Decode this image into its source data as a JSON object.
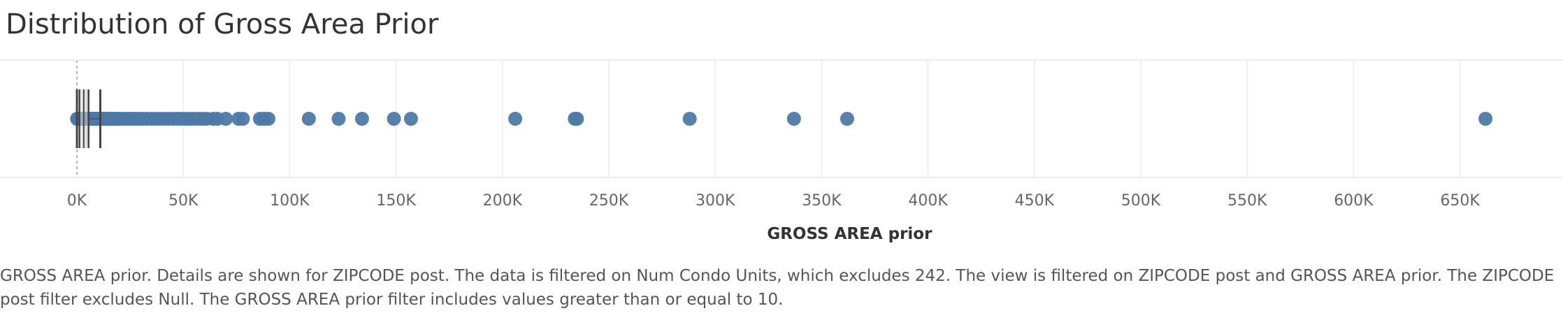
{
  "chart_data": {
    "type": "scatter",
    "title": "Distribution of Gross Area Prior",
    "xlabel": "GROSS AREA prior",
    "ylabel": "",
    "xlim": [
      0,
      700000
    ],
    "x_ticks": [
      0,
      50000,
      100000,
      150000,
      200000,
      250000,
      300000,
      350000,
      400000,
      450000,
      500000,
      550000,
      600000,
      650000
    ],
    "x_tick_labels": [
      "0K",
      "50K",
      "100K",
      "150K",
      "200K",
      "250K",
      "300K",
      "350K",
      "400K",
      "450K",
      "500K",
      "550K",
      "600K",
      "650K"
    ],
    "grid": "vertical",
    "mark_color": "#4e79a7",
    "reference_line_value": 0,
    "box_plot": {
      "lower_whisker": 10,
      "q1": 1200,
      "median": 3200,
      "q3": 5500,
      "upper_whisker": 11000
    },
    "x": [
      100,
      300,
      500,
      700,
      900,
      1100,
      1300,
      1500,
      1700,
      2000,
      2300,
      2600,
      2900,
      3200,
      3500,
      3800,
      4100,
      4400,
      4700,
      5000,
      5300,
      5600,
      6000,
      6400,
      6800,
      7200,
      7600,
      8000,
      8500,
      9000,
      9500,
      10000,
      10800,
      11600,
      12400,
      13200,
      14000,
      15000,
      16000,
      17000,
      18000,
      19000,
      20000,
      21500,
      23000,
      24500,
      26000,
      27500,
      29000,
      31000,
      33000,
      35000,
      37000,
      39000,
      41000,
      43000,
      45000,
      47000,
      49000,
      51000,
      53000,
      55000,
      57000,
      59000,
      61000,
      64000,
      66000,
      70000,
      76000,
      78000,
      86000,
      88000,
      90000,
      109000,
      123000,
      134000,
      149000,
      157000,
      206000,
      234000,
      235000,
      288000,
      337000,
      362000,
      662000
    ]
  },
  "caption": "GROSS AREA prior.  Details are shown for ZIPCODE post. The data is filtered on Num Condo Units, which excludes 242. The view is filtered on ZIPCODE post and GROSS AREA prior. The ZIPCODE post filter excludes Null. The GROSS AREA prior filter includes values greater than or equal to 10."
}
